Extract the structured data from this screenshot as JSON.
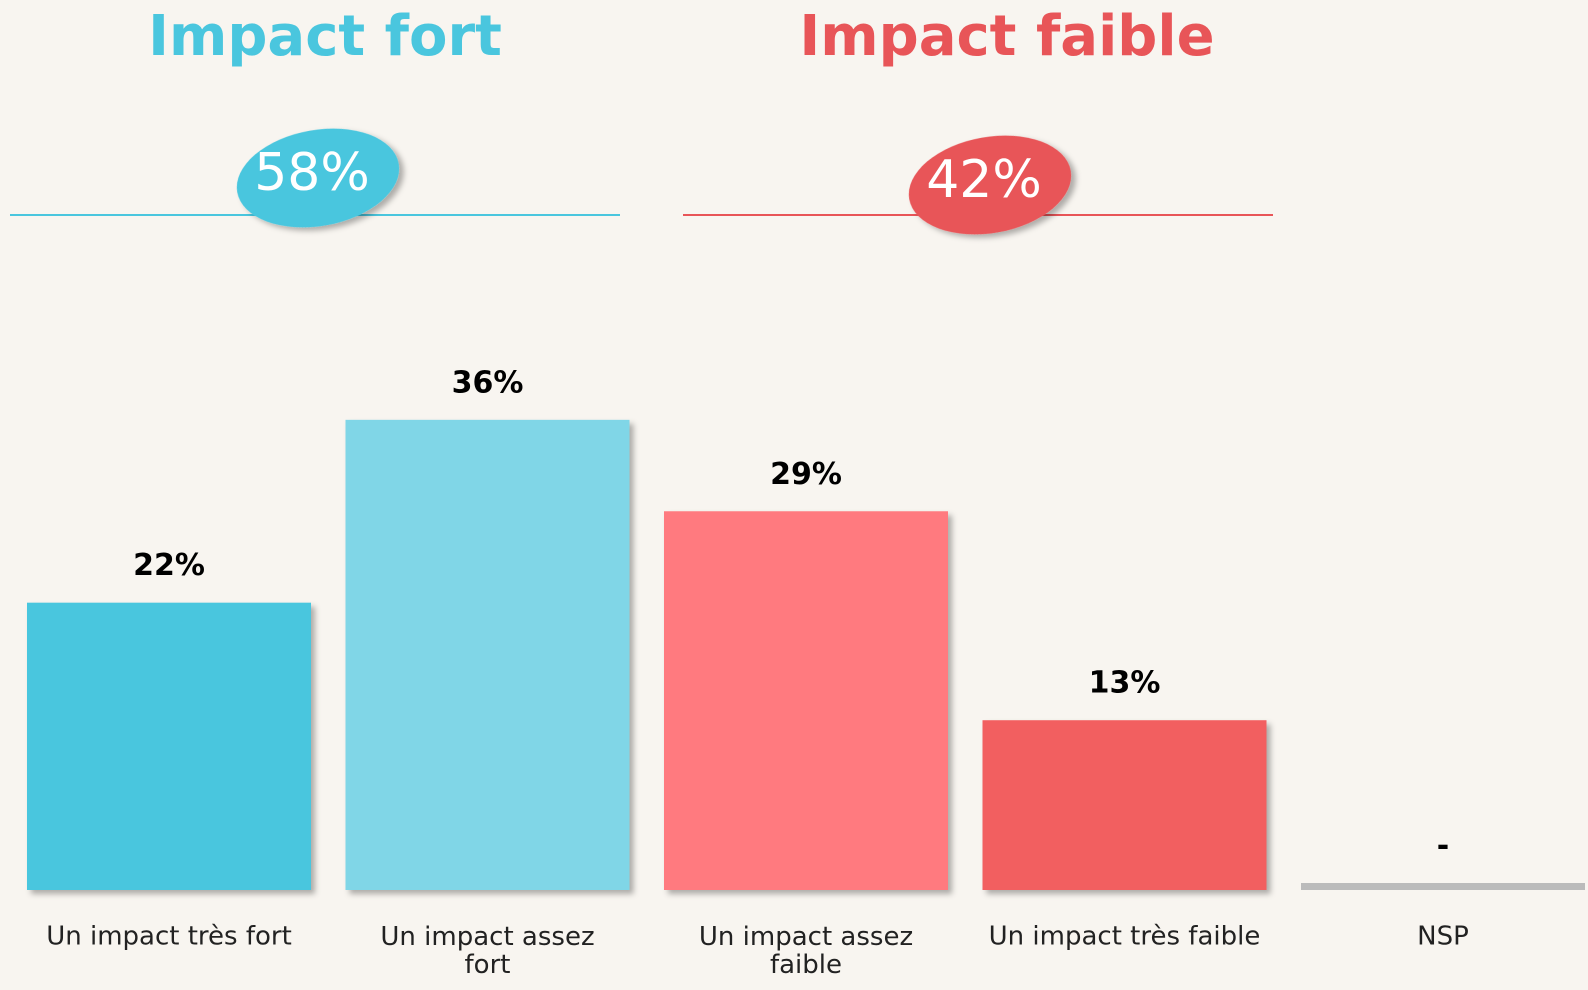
{
  "chart_data": {
    "type": "bar",
    "categories": [
      "Un impact très fort",
      "Un impact assez fort",
      "Un impact assez faible",
      "Un impact très faible",
      "NSP"
    ],
    "values": [
      22,
      36,
      29,
      13,
      null
    ],
    "value_labels": [
      "22%",
      "36%",
      "29%",
      "13%",
      "-"
    ],
    "colors": [
      "#4ac6de",
      "#80d6e7",
      "#ff7a7f",
      "#f25f60",
      "#bbbbbb"
    ],
    "groups": [
      {
        "name": "Impact fort",
        "total": 58,
        "total_label": "58%",
        "color": "#4ac6de"
      },
      {
        "name": "Impact faible",
        "total": 42,
        "total_label": "42%",
        "color": "#e85558"
      }
    ]
  }
}
